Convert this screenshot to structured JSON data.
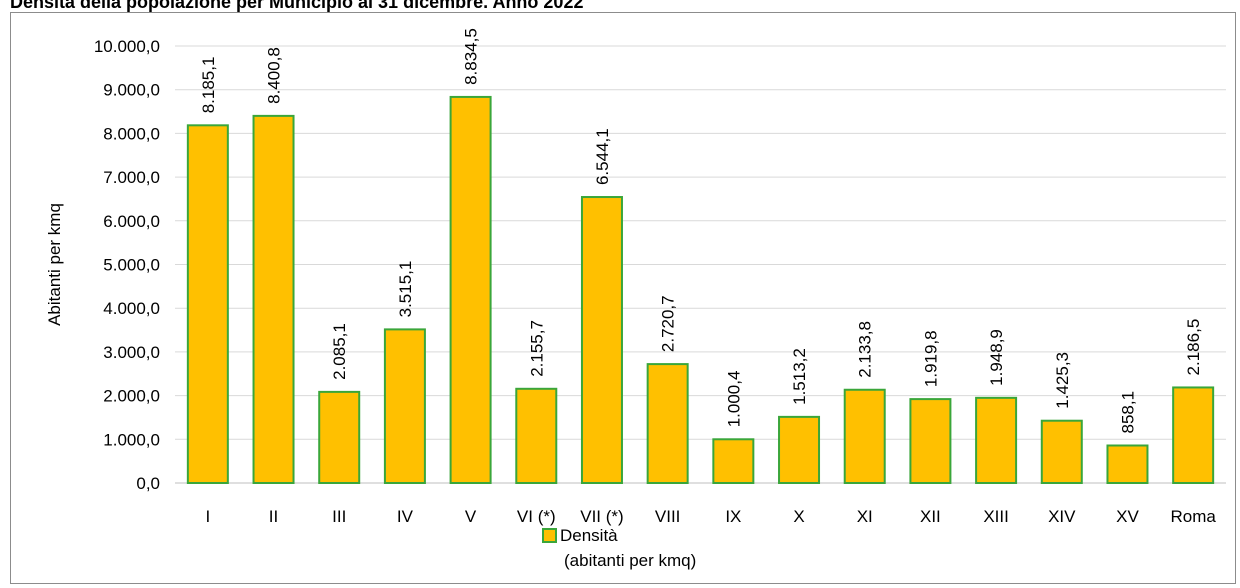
{
  "chart_data": {
    "type": "bar",
    "title": "Densità della popolazione per Municipio al 31 dicembre. Anno 2022",
    "xlabel": "",
    "ylabel": "Abitanti per kmq",
    "ylim": [
      0,
      10000
    ],
    "yticks": [
      0,
      1000,
      2000,
      3000,
      4000,
      5000,
      6000,
      7000,
      8000,
      9000,
      10000
    ],
    "ytick_labels": [
      "0,0",
      "1.000,0",
      "2.000,0",
      "3.000,0",
      "4.000,0",
      "5.000,0",
      "6.000,0",
      "7.000,0",
      "8.000,0",
      "9.000,0",
      "10.000,0"
    ],
    "categories": [
      "I",
      "II",
      "III",
      "IV",
      "V",
      "VI (*)",
      "VII (*)",
      "VIII",
      "IX",
      "X",
      "XI",
      "XII",
      "XIII",
      "XIV",
      "XV",
      "Roma"
    ],
    "series": [
      {
        "name": "Densità (abitanti per kmq)",
        "name_lines": [
          "Densità",
          "(abitanti per kmq)"
        ],
        "values": [
          8185.1,
          8400.8,
          2085.1,
          3515.1,
          8834.5,
          2155.7,
          6544.1,
          2720.7,
          1000.4,
          1513.2,
          2133.8,
          1919.8,
          1948.9,
          1425.3,
          858.1,
          2186.5
        ],
        "labels": [
          "8.185,1",
          "8.400,8",
          "2.085,1",
          "3.515,1",
          "8.834,5",
          "2.155,7",
          "6.544,1",
          "2.720,7",
          "1.000,4",
          "1.513,2",
          "2.133,8",
          "1.919,8",
          "1.948,9",
          "1.425,3",
          "858,1",
          "2.186,5"
        ]
      }
    ],
    "grid": true,
    "legend_position": "bottom",
    "colors": {
      "bar_fill": "#FFC000",
      "bar_stroke": "#3AA63A",
      "grid": "#d9d9d9",
      "axis": "#bfbfbf"
    }
  }
}
